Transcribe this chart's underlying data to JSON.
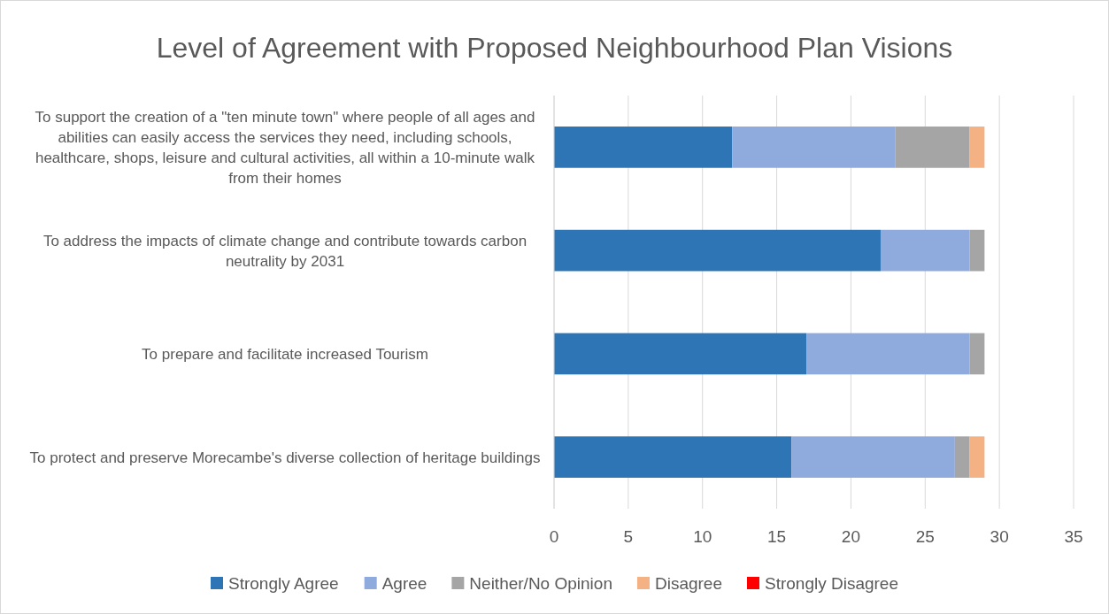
{
  "chart_data": {
    "type": "bar",
    "orientation": "horizontal",
    "stacked": true,
    "title": "Level of Agreement with Proposed Neighbourhood Plan Visions",
    "categories": [
      "To support the creation of a \"ten minute town\" where people of all ages and abilities can easily access the services they need, including schools, healthcare, shops, leisure and cultural activities, all within a 10-minute walk from their homes",
      "To address the impacts of climate change and contribute towards carbon neutrality by 2031",
      "To prepare and facilitate increased Tourism",
      "To protect and preserve Morecambe's diverse collection of heritage buildings"
    ],
    "series": [
      {
        "name": "Strongly Agree",
        "color": "#2e75b6",
        "values": [
          12,
          22,
          17,
          16
        ]
      },
      {
        "name": "Agree",
        "color": "#8faadc",
        "values": [
          11,
          6,
          11,
          11
        ]
      },
      {
        "name": "Neither/No Opinion",
        "color": "#a5a5a5",
        "values": [
          5,
          1,
          1,
          1
        ]
      },
      {
        "name": "Disagree",
        "color": "#f4b183",
        "values": [
          1,
          0,
          0,
          1
        ]
      },
      {
        "name": "Strongly Disagree",
        "color": "#ff0000",
        "values": [
          0,
          0,
          0,
          0
        ]
      }
    ],
    "xlim": [
      0,
      35
    ],
    "xticks": [
      0,
      5,
      10,
      15,
      20,
      25,
      30,
      35
    ],
    "grid": "x",
    "legend": "bottom"
  }
}
